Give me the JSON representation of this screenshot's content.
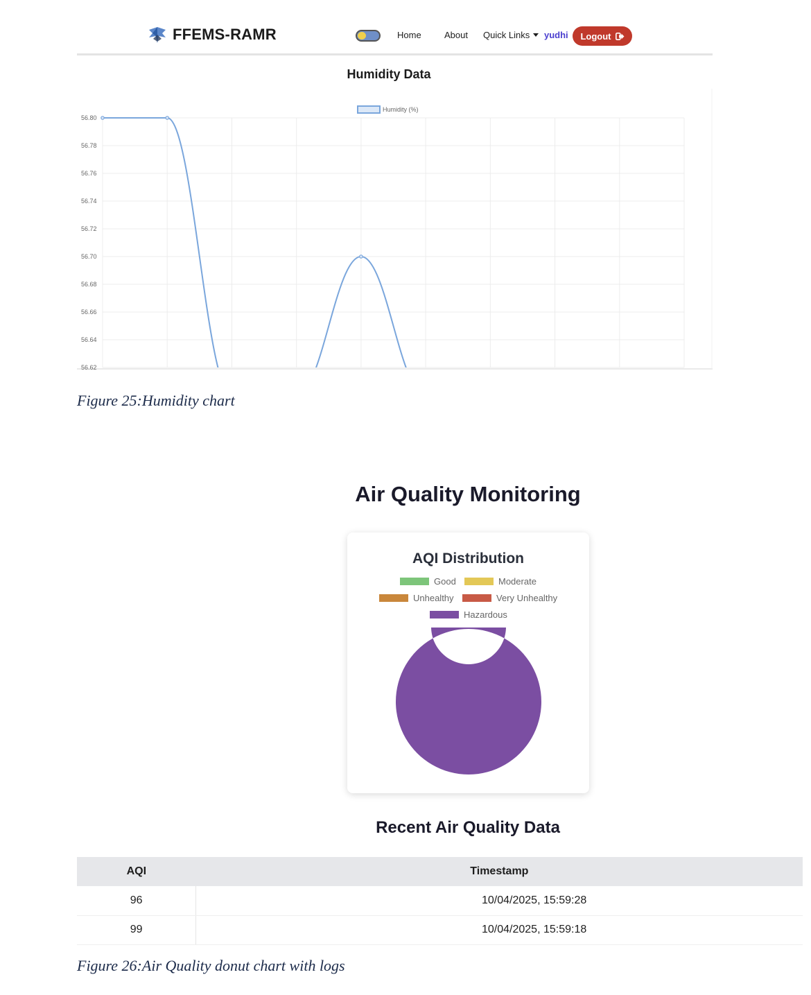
{
  "navbar": {
    "brand": "FFEMS-RAMR",
    "links": {
      "home": "Home",
      "about": "About",
      "quick_links": "Quick Links"
    },
    "user": "yudhi",
    "logout_label": "Logout"
  },
  "humidity": {
    "title": "Humidity Data"
  },
  "chart_data": [
    {
      "type": "line",
      "legend": [
        "Humidity (%)"
      ],
      "legend_position": "top",
      "grid": true,
      "y_ticks": [
        "56.80",
        "56.78",
        "56.76",
        "56.74",
        "56.72",
        "56.70",
        "56.68",
        "56.66",
        "56.64",
        "56.62"
      ],
      "ylim": [
        56.62,
        56.8
      ],
      "series": [
        {
          "name": "Humidity (%)",
          "color": "#7aa6dc",
          "values": [
            56.8,
            56.8,
            56.6,
            56.6,
            56.7,
            56.6,
            null,
            null,
            null,
            null
          ]
        }
      ]
    },
    {
      "type": "pie",
      "title": "AQI Distribution",
      "categories": [
        "Good",
        "Moderate",
        "Unhealthy",
        "Very Unhealthy",
        "Hazardous"
      ],
      "colors": [
        "#7dc57a",
        "#e3c857",
        "#c9873b",
        "#c85a46",
        "#7b4ea2"
      ],
      "values": [
        0,
        0,
        0,
        0,
        100
      ]
    }
  ],
  "captions": {
    "fig25": "Figure 25:Humidity chart",
    "fig26": "Figure 26:Air Quality donut chart with logs"
  },
  "air_quality": {
    "title": "Air Quality Monitoring",
    "card_title": "AQI Distribution",
    "legend": [
      "Good",
      "Moderate",
      "Unhealthy",
      "Very Unhealthy",
      "Hazardous"
    ],
    "recent_title": "Recent Air Quality Data",
    "table": {
      "headers": [
        "AQI",
        "Timestamp"
      ],
      "rows": [
        {
          "aqi": "96",
          "timestamp": "10/04/2025, 15:59:28"
        },
        {
          "aqi": "99",
          "timestamp": "10/04/2025, 15:59:18"
        }
      ]
    }
  },
  "colors": {
    "logout": "#c0392b",
    "user": "#4b3fcf",
    "line": "#7aa6dc",
    "hazardous": "#7b4ea2"
  }
}
